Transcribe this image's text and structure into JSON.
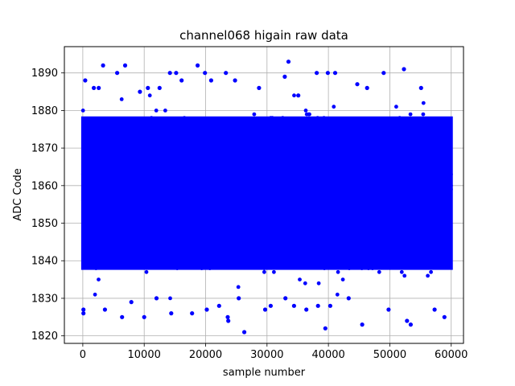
{
  "chart_data": {
    "type": "scatter",
    "title": "channel068 higain raw data",
    "xlabel": "sample number",
    "ylabel": "ADC Code",
    "xlim": [
      -3000,
      62000
    ],
    "ylim": [
      1818,
      1897
    ],
    "xticks": [
      0,
      10000,
      20000,
      30000,
      40000,
      50000,
      60000
    ],
    "xtick_labels": [
      "0",
      "10000",
      "20000",
      "30000",
      "40000",
      "50000",
      "60000"
    ],
    "yticks": [
      1820,
      1830,
      1840,
      1850,
      1860,
      1870,
      1880,
      1890
    ],
    "ytick_labels": [
      "1820",
      "1830",
      "1840",
      "1850",
      "1860",
      "1870",
      "1880",
      "1890"
    ],
    "grid": true,
    "marker_color": "#0000ff",
    "series": [
      {
        "n_samples": 60000,
        "x_range": [
          0,
          59999
        ],
        "y_core_range": [
          1838,
          1878
        ],
        "outliers": [
          [
            100,
            1827
          ],
          [
            100,
            1826
          ],
          [
            400,
            1888
          ],
          [
            1800,
            1886
          ],
          [
            2600,
            1886
          ],
          [
            3300,
            1892
          ],
          [
            3600,
            1827
          ],
          [
            5600,
            1890
          ],
          [
            6400,
            1825
          ],
          [
            6900,
            1892
          ],
          [
            7900,
            1829
          ],
          [
            9300,
            1885
          ],
          [
            10000,
            1825
          ],
          [
            10600,
            1886
          ],
          [
            12000,
            1830
          ],
          [
            12500,
            1886
          ],
          [
            14200,
            1890
          ],
          [
            14400,
            1826
          ],
          [
            15200,
            1890
          ],
          [
            16100,
            1888
          ],
          [
            17800,
            1826
          ],
          [
            18700,
            1892
          ],
          [
            19900,
            1890
          ],
          [
            20200,
            1827
          ],
          [
            20900,
            1888
          ],
          [
            22200,
            1828
          ],
          [
            23300,
            1890
          ],
          [
            23600,
            1825
          ],
          [
            23700,
            1824
          ],
          [
            24800,
            1888
          ],
          [
            25400,
            1830
          ],
          [
            26300,
            1821
          ],
          [
            28700,
            1886
          ],
          [
            29700,
            1827
          ],
          [
            30600,
            1828
          ],
          [
            32900,
            1889
          ],
          [
            33000,
            1830
          ],
          [
            33500,
            1893
          ],
          [
            34400,
            1828
          ],
          [
            35100,
            1884
          ],
          [
            36400,
            1827
          ],
          [
            38100,
            1890
          ],
          [
            38300,
            1828
          ],
          [
            39500,
            1822
          ],
          [
            39900,
            1890
          ],
          [
            40300,
            1828
          ],
          [
            41100,
            1890
          ],
          [
            43300,
            1830
          ],
          [
            44700,
            1887
          ],
          [
            45500,
            1823
          ],
          [
            46300,
            1886
          ],
          [
            49000,
            1890
          ],
          [
            49800,
            1827
          ],
          [
            52300,
            1891
          ],
          [
            52800,
            1824
          ],
          [
            53400,
            1823
          ],
          [
            55100,
            1886
          ],
          [
            57300,
            1827
          ],
          [
            58900,
            1825
          ]
        ]
      }
    ]
  }
}
